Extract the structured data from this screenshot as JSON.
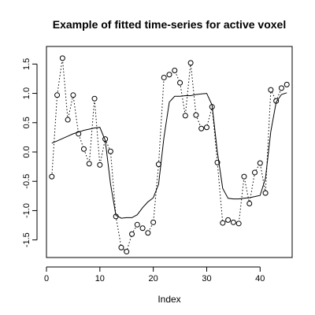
{
  "chart_data": {
    "type": "line",
    "title": "Example of fitted time-series for active voxel",
    "xlabel": "Index",
    "ylabel": "",
    "xlim": [
      0,
      46
    ],
    "ylim": [
      -1.8,
      1.8
    ],
    "x_ticks": [
      0,
      10,
      20,
      30,
      40
    ],
    "y_ticks": [
      -1.5,
      -1.0,
      -0.5,
      0.0,
      0.5,
      1.0,
      1.5
    ],
    "x_tick_labels": [
      "0",
      "10",
      "20",
      "30",
      "40"
    ],
    "y_tick_labels": [
      "-1.5",
      "-1.0",
      "-0.5",
      "0.0",
      "0.5",
      "1.0",
      "1.5"
    ],
    "grid": false,
    "series": [
      {
        "style": "points-dotted",
        "x": [
          1,
          2,
          3,
          4,
          5,
          6,
          7,
          8,
          9,
          10,
          11,
          12,
          13,
          14,
          15,
          16,
          17,
          18,
          19,
          20,
          21,
          22,
          23,
          24,
          25,
          26,
          27,
          28,
          29,
          30,
          31,
          32,
          33,
          34,
          35,
          36,
          37,
          38,
          39,
          40,
          41,
          42,
          43,
          44,
          45
        ],
        "values": [
          -0.42,
          0.97,
          1.6,
          0.55,
          0.97,
          0.31,
          0.05,
          -0.2,
          0.91,
          -0.22,
          0.22,
          0.01,
          -1.1,
          -1.63,
          -1.7,
          -1.4,
          -1.24,
          -1.3,
          -1.38,
          -1.2,
          -0.21,
          1.27,
          1.32,
          1.39,
          1.18,
          0.62,
          1.52,
          0.63,
          0.4,
          0.42,
          0.77,
          -0.18,
          -1.21,
          -1.16,
          -1.2,
          -1.22,
          -0.42,
          -0.88,
          -0.35,
          -0.19,
          -0.7,
          1.06,
          0.87,
          1.09,
          1.15
        ]
      },
      {
        "style": "line-solid",
        "x": [
          1,
          2,
          3,
          4,
          5,
          6,
          7,
          8,
          9,
          10,
          11,
          12,
          13,
          14,
          15,
          16,
          17,
          18,
          19,
          20,
          21,
          22,
          23,
          24,
          25,
          26,
          27,
          28,
          29,
          30,
          31,
          32,
          33,
          34,
          35,
          36,
          37,
          38,
          39,
          40,
          41,
          42,
          43,
          44,
          45
        ],
        "values": [
          0.15,
          0.19,
          0.23,
          0.27,
          0.31,
          0.34,
          0.37,
          0.39,
          0.41,
          0.42,
          0.2,
          -0.55,
          -1.08,
          -1.13,
          -1.12,
          -1.12,
          -1.07,
          -0.95,
          -0.85,
          -0.78,
          -0.55,
          0.25,
          0.85,
          0.95,
          0.95,
          0.96,
          0.96,
          0.98,
          0.99,
          1.0,
          0.8,
          0.0,
          -0.62,
          -0.79,
          -0.8,
          -0.8,
          -0.79,
          -0.78,
          -0.76,
          -0.74,
          -0.45,
          0.35,
          0.85,
          0.98,
          1.01
        ]
      }
    ]
  }
}
